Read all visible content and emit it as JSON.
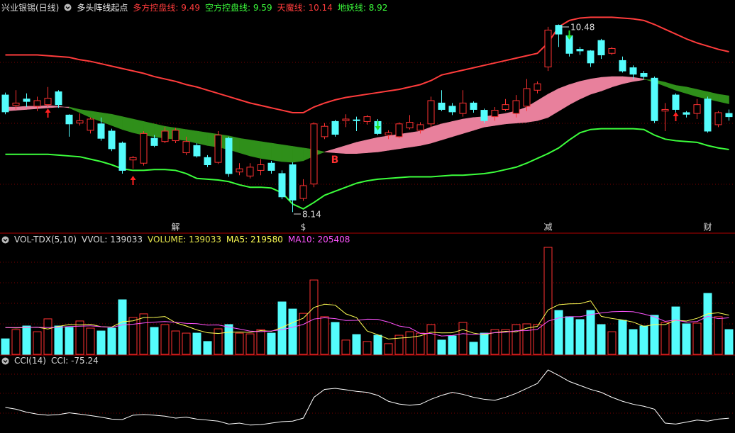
{
  "chart_data": [
    {
      "type": "candlestick",
      "title": "兴业银锡(日线)",
      "subtitle": "多头阵线起点",
      "signal_label": "B",
      "up_color": "#ff3232",
      "down_color": "#54fcfc",
      "fill_colors": [
        "#e8809c",
        "#2f8f1a"
      ],
      "ylim": [
        7.886,
        10.785
      ],
      "categories": [
        null,
        null,
        null,
        null,
        null,
        null,
        null,
        null,
        null,
        null,
        null,
        null,
        null,
        null,
        null,
        null,
        "解",
        null,
        null,
        null,
        null,
        null,
        null,
        null,
        null,
        null,
        null,
        null,
        "$",
        null,
        null,
        null,
        null,
        null,
        null,
        null,
        null,
        null,
        null,
        null,
        null,
        null,
        null,
        null,
        null,
        null,
        null,
        null,
        null,
        null,
        null,
        "减",
        null,
        null,
        null,
        null,
        null,
        null,
        null,
        null,
        null,
        null,
        null,
        null,
        null,
        null,
        "财",
        null,
        null
      ],
      "open": [
        9.6,
        9.47,
        9.55,
        9.46,
        9.48,
        9.64,
        9.35,
        9.25,
        9.16,
        9.24,
        9.15,
        9.0,
        8.79,
        8.75,
        9.06,
        9.02,
        9.03,
        8.88,
        8.97,
        8.82,
        8.76,
        9.06,
        8.64,
        8.59,
        8.66,
        8.75,
        8.62,
        8.73,
        8.31,
        8.49,
        9.08,
        9.27,
        9.28,
        9.29,
        9.27,
        9.27,
        9.1,
        9.08,
        9.19,
        9.16,
        9.24,
        9.5,
        9.46,
        9.37,
        9.5,
        9.41,
        9.33,
        9.42,
        9.37,
        9.46,
        9.66,
        9.95,
        10.47,
        10.34,
        10.17,
        10.15,
        10.28,
        10.12,
        10.03,
        9.94,
        9.87,
        9.81,
        9.4,
        9.6,
        9.38,
        9.37,
        9.55,
        9.23,
        9.37
      ],
      "close": [
        9.39,
        9.5,
        9.52,
        9.53,
        9.56,
        9.48,
        9.24,
        9.28,
        9.3,
        9.06,
        8.93,
        8.66,
        8.82,
        9.12,
        8.97,
        9.15,
        9.16,
        9.02,
        8.84,
        8.73,
        9.1,
        8.62,
        8.68,
        8.7,
        8.73,
        8.66,
        8.33,
        8.29,
        8.47,
        9.24,
        9.21,
        9.11,
        9.3,
        9.28,
        9.33,
        9.12,
        9.13,
        9.24,
        9.26,
        9.23,
        9.53,
        9.42,
        9.39,
        9.5,
        9.42,
        9.28,
        9.41,
        9.48,
        9.53,
        9.68,
        9.74,
        10.41,
        10.36,
        10.12,
        10.15,
        10.0,
        10.1,
        10.18,
        9.9,
        9.86,
        9.83,
        9.28,
        9.42,
        9.42,
        9.36,
        9.48,
        9.15,
        9.38,
        9.33
      ],
      "high": [
        9.63,
        9.66,
        9.62,
        9.58,
        9.7,
        9.66,
        9.36,
        9.37,
        9.32,
        9.32,
        9.18,
        9.02,
        8.84,
        9.15,
        9.1,
        9.2,
        9.19,
        9.08,
        9.0,
        8.85,
        9.15,
        9.08,
        8.75,
        8.75,
        8.8,
        8.78,
        8.66,
        8.76,
        8.55,
        9.26,
        9.25,
        9.29,
        9.36,
        9.33,
        9.35,
        9.3,
        9.16,
        9.26,
        9.35,
        9.26,
        9.58,
        9.66,
        9.5,
        9.66,
        9.52,
        9.43,
        9.45,
        9.55,
        9.6,
        9.8,
        9.77,
        10.45,
        10.48,
        10.35,
        10.2,
        10.16,
        10.3,
        10.2,
        10.08,
        9.97,
        9.9,
        9.83,
        9.5,
        9.62,
        9.4,
        9.55,
        9.58,
        9.4,
        9.42
      ],
      "low": [
        9.36,
        9.42,
        9.45,
        9.4,
        9.45,
        9.44,
        9.08,
        9.22,
        9.12,
        9.03,
        8.9,
        8.62,
        8.68,
        8.72,
        8.95,
        9.0,
        9.0,
        8.85,
        8.82,
        8.7,
        8.74,
        8.58,
        8.6,
        8.56,
        8.6,
        8.62,
        8.3,
        8.14,
        8.28,
        8.45,
        9.05,
        9.08,
        9.2,
        9.15,
        9.23,
        9.1,
        9.05,
        9.06,
        9.17,
        9.12,
        9.2,
        9.4,
        9.35,
        9.33,
        9.38,
        9.25,
        9.28,
        9.4,
        9.32,
        9.4,
        9.62,
        9.9,
        10.2,
        10.08,
        10.1,
        9.95,
        10.05,
        10.1,
        9.88,
        9.8,
        9.8,
        9.25,
        9.15,
        9.3,
        9.32,
        9.3,
        9.13,
        9.2,
        9.28
      ],
      "series": [
        {
          "name": "多方控盘线",
          "color": "#ff3c3c",
          "values": [
            9.45,
            9.45,
            9.46,
            9.46,
            9.47,
            9.46,
            9.44,
            9.38,
            9.32,
            9.27,
            9.22,
            9.17,
            9.13,
            9.1,
            9.08,
            9.06,
            9.05,
            9.03,
            9.0,
            8.97,
            8.95,
            8.92,
            8.88,
            8.84,
            8.81,
            8.79,
            8.77,
            8.76,
            8.78,
            8.84,
            8.89,
            8.93,
            8.97,
            9.01,
            9.04,
            9.07,
            9.09,
            9.11,
            9.13,
            9.15,
            9.2,
            9.24,
            9.27,
            9.3,
            9.32,
            9.33,
            9.35,
            9.37,
            9.4,
            9.45,
            9.53,
            9.61,
            9.68,
            9.73,
            9.77,
            9.8,
            9.82,
            9.83,
            9.83,
            9.82,
            9.8,
            9.76,
            9.71,
            9.66,
            9.62,
            9.58,
            9.55,
            9.52,
            9.49
          ]
        },
        {
          "name": "空方控盘线",
          "color": "#3cff3c",
          "values": [
            9.4,
            9.41,
            9.42,
            9.43,
            9.44,
            9.45,
            9.45,
            9.42,
            9.4,
            9.38,
            9.36,
            9.33,
            9.3,
            9.27,
            9.24,
            9.21,
            9.19,
            9.17,
            9.15,
            9.13,
            9.11,
            9.09,
            9.06,
            9.04,
            9.02,
            9.0,
            8.98,
            8.96,
            8.94,
            8.92,
            8.89,
            8.88,
            8.87,
            8.87,
            8.88,
            8.89,
            8.91,
            8.93,
            8.95,
            8.97,
            9.0,
            9.04,
            9.08,
            9.12,
            9.16,
            9.2,
            9.22,
            9.24,
            9.25,
            9.26,
            9.28,
            9.32,
            9.4,
            9.48,
            9.55,
            9.61,
            9.65,
            9.7,
            9.74,
            9.77,
            9.79,
            9.79,
            9.76,
            9.72,
            9.7,
            9.67,
            9.64,
            9.61,
            9.59
          ]
        },
        {
          "name": "天魔线",
          "color": "#ff3c3c",
          "values": [
            10.1,
            10.1,
            10.1,
            10.1,
            10.09,
            10.08,
            10.07,
            10.04,
            10.02,
            9.99,
            9.96,
            9.93,
            9.9,
            9.87,
            9.83,
            9.8,
            9.77,
            9.73,
            9.7,
            9.66,
            9.62,
            9.58,
            9.54,
            9.5,
            9.47,
            9.44,
            9.41,
            9.38,
            9.38,
            9.45,
            9.5,
            9.54,
            9.57,
            9.59,
            9.61,
            9.63,
            9.65,
            9.67,
            9.7,
            9.73,
            9.78,
            9.85,
            9.88,
            9.91,
            9.94,
            9.97,
            10.0,
            10.03,
            10.06,
            10.09,
            10.12,
            10.25,
            10.45,
            10.53,
            10.56,
            10.57,
            10.57,
            10.57,
            10.56,
            10.55,
            10.53,
            10.48,
            10.42,
            10.36,
            10.3,
            10.25,
            10.21,
            10.17,
            10.14
          ]
        },
        {
          "name": "地妖线",
          "color": "#3cff3c",
          "values": [
            8.86,
            8.86,
            8.86,
            8.86,
            8.86,
            8.85,
            8.84,
            8.83,
            8.8,
            8.77,
            8.73,
            8.68,
            8.66,
            8.66,
            8.67,
            8.67,
            8.66,
            8.62,
            8.56,
            8.55,
            8.54,
            8.52,
            8.48,
            8.45,
            8.45,
            8.44,
            8.38,
            8.24,
            8.18,
            8.26,
            8.35,
            8.4,
            8.45,
            8.5,
            8.53,
            8.55,
            8.56,
            8.57,
            8.58,
            8.58,
            8.58,
            8.59,
            8.6,
            8.6,
            8.61,
            8.62,
            8.64,
            8.67,
            8.7,
            8.75,
            8.81,
            8.87,
            8.94,
            9.04,
            9.13,
            9.17,
            9.18,
            9.18,
            9.18,
            9.18,
            9.17,
            9.1,
            9.05,
            9.03,
            9.02,
            9.01,
            8.97,
            8.94,
            8.92
          ]
        }
      ]
    },
    {
      "type": "bar",
      "title": "VOL-TDX(5,10)",
      "vvol_label": "VVOL",
      "up_color": "#ff3232",
      "down_color": "#54fcfc",
      "ylim": [
        0,
        620000
      ],
      "series": [
        {
          "name": "VOLUME",
          "color": "#e6e64c",
          "values": [
            87000,
            139000,
            159000,
            127000,
            199000,
            159000,
            151000,
            187000,
            147000,
            131000,
            147000,
            306000,
            207000,
            227000,
            151000,
            167000,
            131000,
            119000,
            119000,
            72000,
            143000,
            167000,
            119000,
            115000,
            139000,
            119000,
            294000,
            254000,
            230000,
            417000,
            211000,
            179000,
            80000,
            111000,
            72000,
            107000,
            60000,
            107000,
            127000,
            119000,
            167000,
            80000,
            103000,
            179000,
            68000,
            119000,
            139000,
            139000,
            167000,
            171000,
            167000,
            600000,
            246000,
            211000,
            195000,
            246000,
            167000,
            127000,
            191000,
            139000,
            159000,
            219000,
            179000,
            266000,
            171000,
            175000,
            342000,
            211000,
            139033
          ]
        },
        {
          "name": "MA5",
          "color": "#ffff54",
          "values": [
            150000,
            148000,
            150000,
            152000,
            142000,
            157000,
            167000,
            165000,
            169000,
            155000,
            153000,
            183000,
            188000,
            206000,
            207000,
            212000,
            177000,
            159000,
            137000,
            121000,
            117000,
            124000,
            125000,
            123000,
            133000,
            129000,
            151000,
            178000,
            203000,
            263000,
            281000,
            276000,
            227000,
            206000,
            131000,
            110000,
            86000,
            91000,
            95000,
            104000,
            124000,
            120000,
            121000,
            139000,
            119000,
            110000,
            122000,
            129000,
            126000,
            147000,
            157000,
            249000,
            278000,
            283000,
            284000,
            300000,
            213000,
            201000,
            193000,
            181000,
            157000,
            167000,
            167000,
            191000,
            187000,
            202000,
            227000,
            233000,
            219580
          ]
        },
        {
          "name": "MA10",
          "color": "#ff54ff",
          "values": [
            150000,
            150000,
            151000,
            152000,
            150000,
            152000,
            156000,
            158000,
            160000,
            155000,
            151000,
            165000,
            169000,
            176000,
            181000,
            184000,
            180000,
            174000,
            172000,
            164000,
            165000,
            153000,
            142000,
            130000,
            127000,
            131000,
            138000,
            152000,
            168000,
            198000,
            205000,
            200000,
            190000,
            191000,
            197000,
            196000,
            181000,
            159000,
            149000,
            117000,
            117000,
            103000,
            106000,
            116000,
            111000,
            116000,
            121000,
            124000,
            132000,
            133000,
            140000,
            186000,
            204000,
            211000,
            211000,
            223000,
            232000,
            239000,
            241000,
            239000,
            226000,
            210000,
            185000,
            192000,
            181000,
            184000,
            213000,
            200000,
            205408
          ]
        }
      ]
    },
    {
      "type": "line",
      "title": "CCI(14)",
      "ylim": [
        -150,
        236
      ],
      "series": [
        {
          "name": "CCI",
          "color": "#ffffff",
          "values": [
            -21,
            -30,
            -45,
            -55,
            -60,
            -57,
            -48,
            -55,
            -62,
            -70,
            -80,
            -82,
            -60,
            -57,
            -60,
            -65,
            -75,
            -70,
            -80,
            -85,
            -90,
            -105,
            -100,
            -110,
            -108,
            -100,
            -93,
            -90,
            -75,
            30,
            70,
            75,
            68,
            60,
            55,
            40,
            10,
            -4,
            -10,
            -5,
            20,
            40,
            55,
            45,
            30,
            20,
            15,
            30,
            50,
            75,
            100,
            168,
            140,
            110,
            90,
            70,
            55,
            30,
            10,
            -5,
            -15,
            -30,
            -100,
            -105,
            -95,
            -85,
            -90,
            -80,
            -75.24
          ]
        }
      ]
    }
  ]
}
